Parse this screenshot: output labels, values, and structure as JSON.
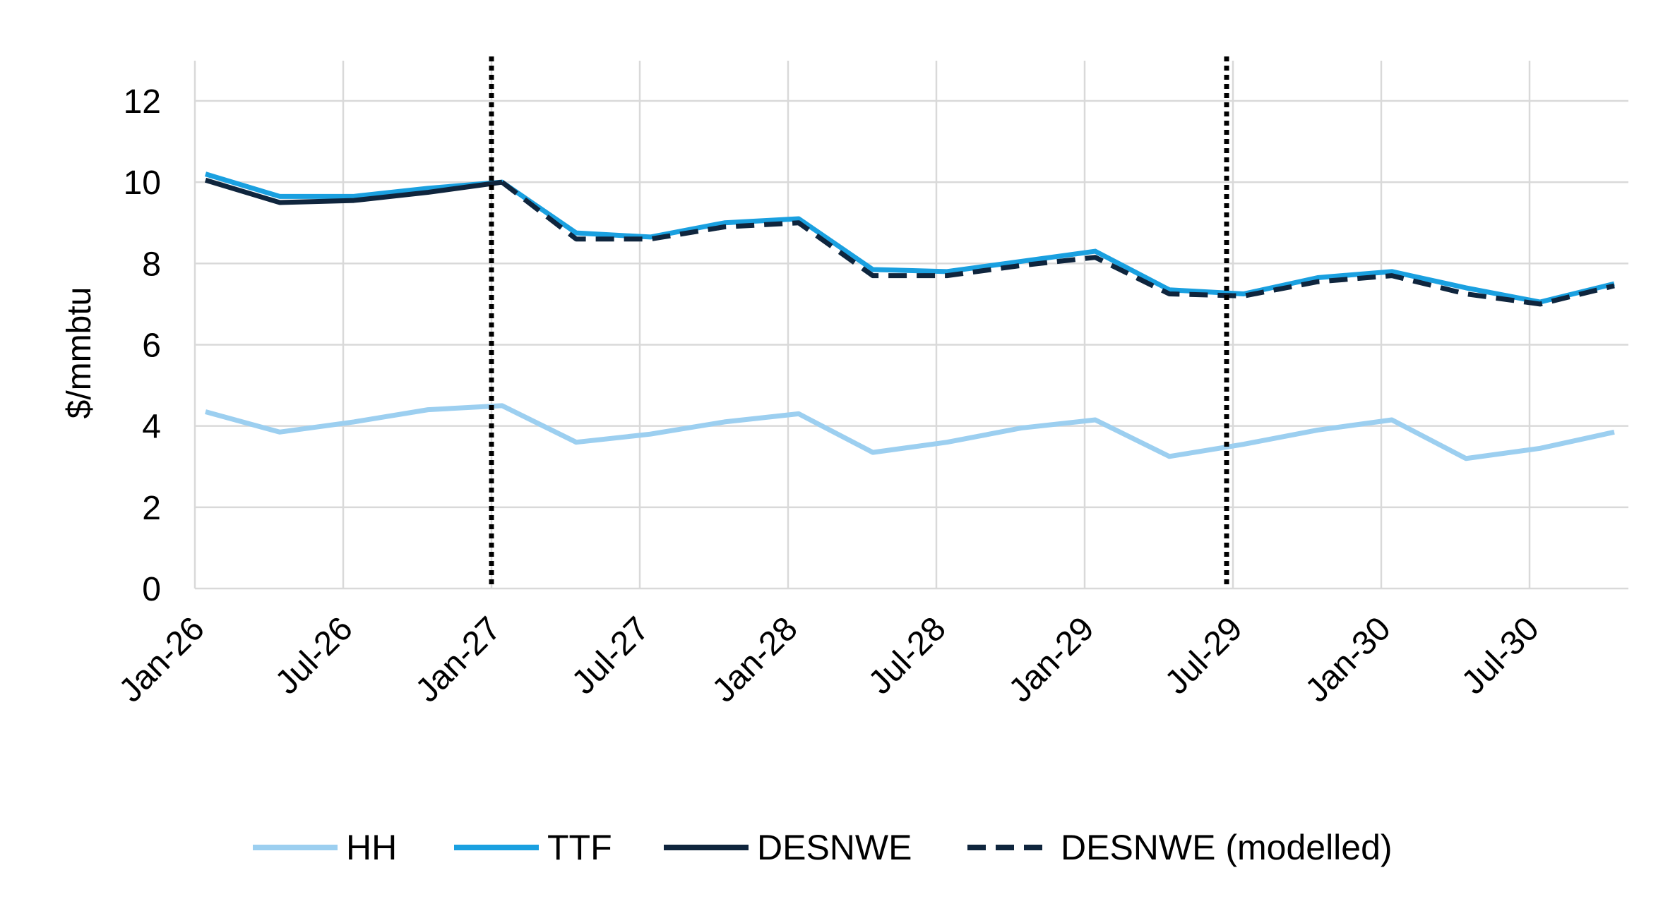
{
  "chart_data": {
    "type": "line",
    "title": "",
    "xlabel": "",
    "ylabel": "$/mmbtu",
    "ylim": [
      0,
      13
    ],
    "yticks": [
      0,
      2,
      4,
      6,
      8,
      10,
      12
    ],
    "grid": true,
    "legend_position": "bottom",
    "x": [
      "Jan-26",
      "Apr-26",
      "Jul-26",
      "Oct-26",
      "Jan-27",
      "Apr-27",
      "Jul-27",
      "Oct-27",
      "Jan-28",
      "Apr-28",
      "Jul-28",
      "Oct-28",
      "Jan-29",
      "Apr-29",
      "Jul-29",
      "Oct-29",
      "Jan-30",
      "Apr-30",
      "Jul-30",
      "Oct-30"
    ],
    "xtick_labels": [
      "Jan-26",
      "Jul-26",
      "Jan-27",
      "Jul-27",
      "Jan-28",
      "Jul-28",
      "Jan-29",
      "Jul-29",
      "Jan-30",
      "Jul-30"
    ],
    "series": [
      {
        "name": "HH",
        "color": "#9ccff0",
        "style": "solid",
        "values": [
          4.35,
          3.85,
          4.1,
          4.4,
          4.5,
          3.6,
          3.8,
          4.1,
          4.3,
          3.35,
          3.6,
          3.95,
          4.15,
          3.25,
          3.55,
          3.9,
          4.15,
          3.2,
          3.45,
          3.85
        ]
      },
      {
        "name": "TTF",
        "color": "#1aa0e0",
        "style": "solid",
        "values": [
          10.2,
          9.65,
          9.65,
          9.85,
          10.0,
          8.75,
          8.65,
          9.0,
          9.1,
          7.85,
          7.8,
          8.05,
          8.3,
          7.35,
          7.25,
          7.65,
          7.8,
          7.4,
          7.05,
          7.5
        ]
      },
      {
        "name": "DESNWE",
        "color": "#0f253d",
        "style": "solid",
        "values": [
          10.05,
          9.5,
          9.55,
          9.75,
          10.0,
          null,
          null,
          null,
          null,
          null,
          null,
          null,
          null,
          null,
          null,
          null,
          null,
          null,
          null,
          null
        ]
      },
      {
        "name": "DESNWE (modelled)",
        "color": "#0f253d",
        "style": "dashed",
        "values": [
          null,
          null,
          null,
          null,
          10.0,
          8.6,
          8.6,
          8.9,
          9.0,
          7.7,
          7.7,
          7.95,
          8.15,
          7.25,
          7.2,
          7.55,
          7.7,
          7.25,
          7.0,
          7.45
        ]
      }
    ],
    "annotations": [
      {
        "type": "vertical-dotted-line",
        "x": "Jan-27"
      },
      {
        "type": "vertical-dotted-line",
        "x": "Jul-29"
      }
    ]
  }
}
